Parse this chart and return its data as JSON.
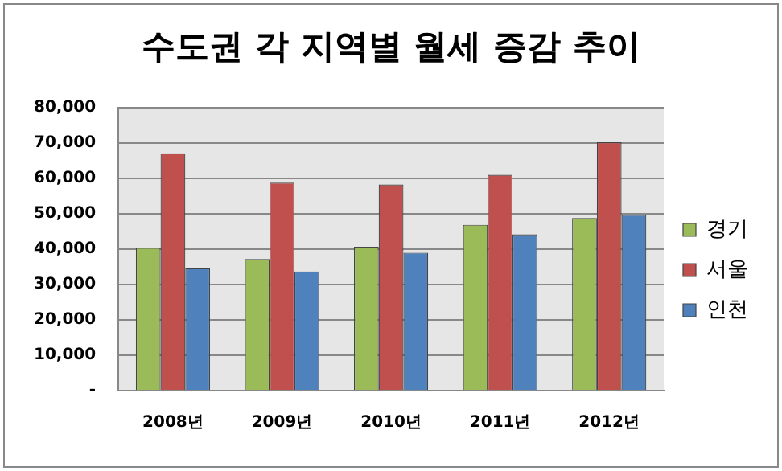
{
  "chart_data": {
    "type": "bar",
    "title": "수도권 각 지역별 월세 증감 추이",
    "categories": [
      "2008년",
      "2009년",
      "2010년",
      "2011년",
      "2012년"
    ],
    "series": [
      {
        "name": "경기",
        "color": "#9bbb59",
        "values": [
          40400,
          37200,
          40700,
          46900,
          48800
        ]
      },
      {
        "name": "서울",
        "color": "#c0504d",
        "values": [
          67100,
          58800,
          58300,
          61000,
          70200
        ]
      },
      {
        "name": "인천",
        "color": "#4f81bd",
        "values": [
          34600,
          33700,
          39000,
          44200,
          49700
        ]
      }
    ],
    "ylim": [
      0,
      80000
    ],
    "yticks": [
      {
        "value": 0,
        "label": "-"
      },
      {
        "value": 10000,
        "label": "10,000"
      },
      {
        "value": 20000,
        "label": "20,000"
      },
      {
        "value": 30000,
        "label": "30,000"
      },
      {
        "value": 40000,
        "label": "40,000"
      },
      {
        "value": 50000,
        "label": "50,000"
      },
      {
        "value": 60000,
        "label": "60,000"
      },
      {
        "value": 70000,
        "label": "70,000"
      },
      {
        "value": 80000,
        "label": "80,000"
      }
    ],
    "grid": "y",
    "legend": "right"
  }
}
